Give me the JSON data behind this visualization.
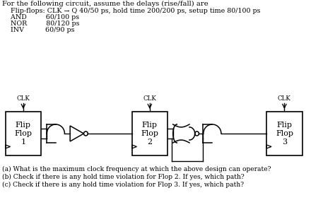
{
  "title_line1": "For the following circuit, assume the delays (rise/fall) are",
  "specs": [
    "    Flip-flops: CLK → Q 40/50 ps, hold time 200/200 ps, setup time 80/100 ps",
    "    AND         60/100 ps",
    "    NOR         80/120 ps",
    "    INV          60/90 ps"
  ],
  "questions": [
    "(a) What is the maximum clock frequency at which the above design can operate?",
    "(b) Check if there is any hold time violation for Flop 2. If yes, which path?",
    "(c) Check if there is any hold time violation for Flop 3. If yes, which path?"
  ],
  "bg_color": "#ffffff",
  "text_color": "#000000",
  "clk_label": "CLK",
  "flop_labels": [
    "Flip\nFlop\n1",
    "Flip\nFlop\n2",
    "Flip\nFlop\n3"
  ]
}
